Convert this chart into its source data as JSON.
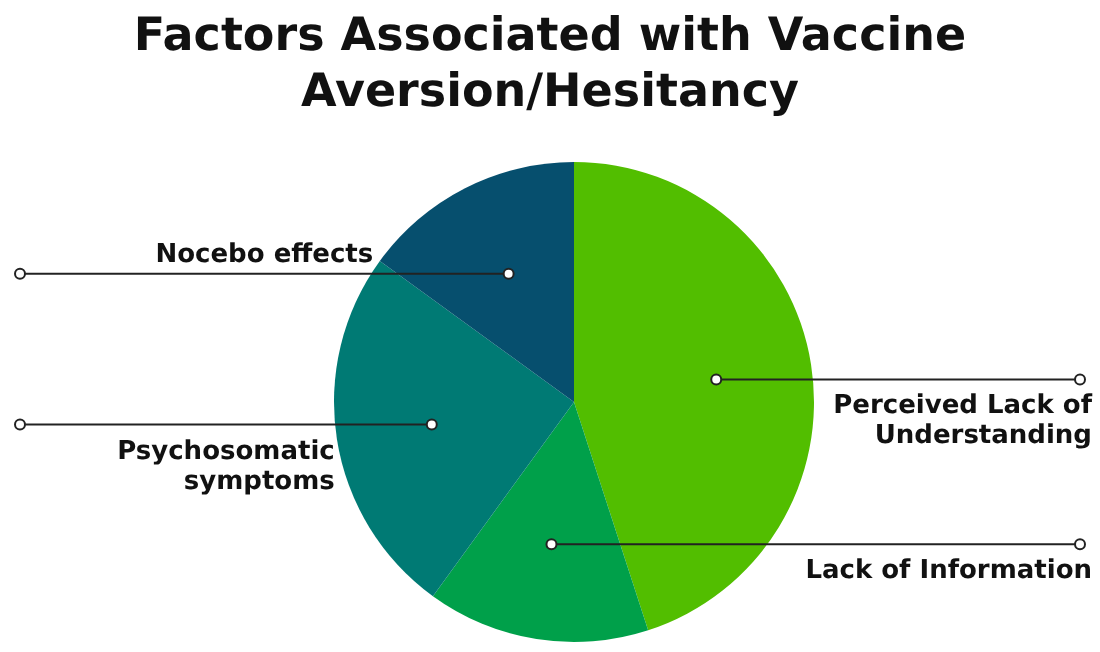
{
  "chart_data": {
    "type": "pie",
    "title": "Factors Associated with Vaccine Aversion/Hesitancy",
    "categories": [
      "Perceived Lack of Understanding",
      "Lack of Information",
      "Psychosomatic symptoms",
      "Nocebo effects"
    ],
    "values": [
      45,
      15,
      25,
      15
    ],
    "colors": [
      "#52be00",
      "#00a04a",
      "#007a74",
      "#064f6e"
    ]
  }
}
